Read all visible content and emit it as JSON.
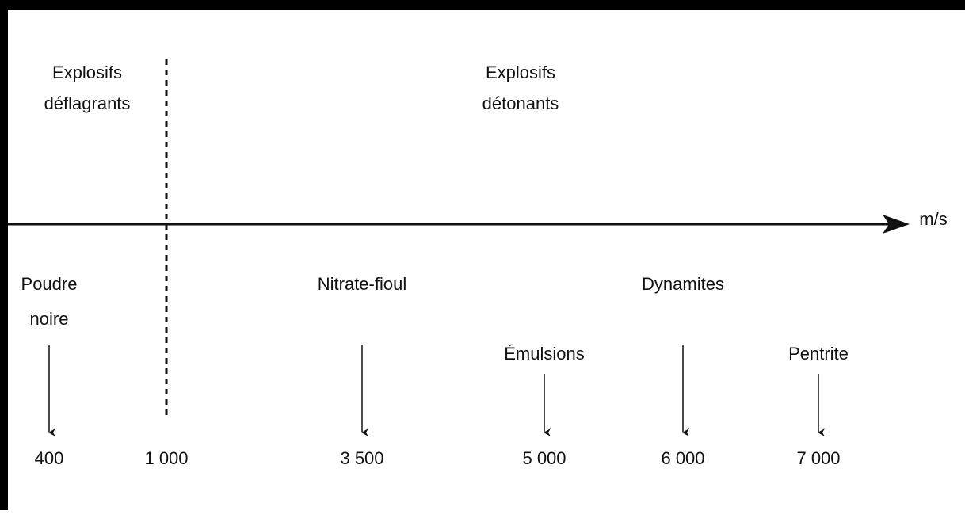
{
  "regions": [
    {
      "label": [
        "Explosifs",
        "déflagrants"
      ]
    },
    {
      "label": [
        "Explosifs",
        "détonants"
      ]
    }
  ],
  "axis": {
    "unit": "m/s"
  },
  "groups": [
    {
      "label": "Dynamites"
    }
  ],
  "items": [
    {
      "label": [
        "Poudre",
        "noire"
      ],
      "value": "400"
    },
    {
      "value": "1 000"
    },
    {
      "label": [
        "Nitrate-fioul"
      ],
      "value": "3 500"
    },
    {
      "label": [
        "Émulsions"
      ],
      "value": "5 000"
    },
    {
      "value": "6 000"
    },
    {
      "label": [
        "Pentrite"
      ],
      "value": "7 000"
    }
  ]
}
